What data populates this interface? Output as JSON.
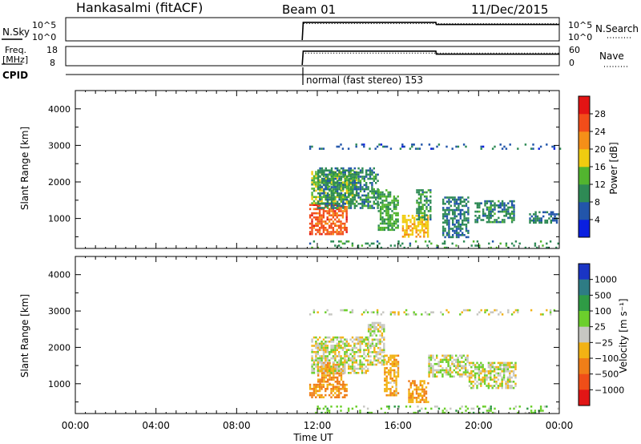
{
  "header": {
    "station": "Hankasalmi (fitACF)",
    "beam": "Beam 01",
    "date": "11/Dec/2015"
  },
  "mini_panels": {
    "nsky": {
      "left_label": "N.Sky",
      "right_label": "N.Search",
      "left_ticks": [
        "10^5",
        "10^0"
      ],
      "right_ticks": [
        "10^5",
        "10^0"
      ]
    },
    "freq": {
      "left_label_1": "Freq.",
      "left_label_2": "[MHz]",
      "right_label": "Nave",
      "left_ticks": [
        "18",
        "8"
      ],
      "right_ticks": [
        "60",
        "0"
      ]
    },
    "cpid": {
      "label": "CPID",
      "text": "normal (fast stereo) 153"
    }
  },
  "axes": {
    "xlabel": "Time UT",
    "xticks": [
      "00:00",
      "04:00",
      "08:00",
      "12:00",
      "16:00",
      "20:00",
      "00:00"
    ],
    "ylabel": "Slant Range [km]",
    "yticks": [
      "1000",
      "2000",
      "3000",
      "4000"
    ]
  },
  "power_colorbar": {
    "label": "Power [dB]",
    "ticks": [
      "28",
      "24",
      "20",
      "16",
      "12",
      "8",
      "4"
    ]
  },
  "velocity_colorbar": {
    "label": "Velocity [m s⁻¹]",
    "ticks": [
      "1000",
      "500",
      "100",
      "25",
      "−25",
      "−100",
      "−500",
      "−1000"
    ]
  },
  "colors": {
    "power": [
      "#0a1fe0",
      "#2255aa",
      "#2e8a55",
      "#52b52f",
      "#f0cc10",
      "#f58f18",
      "#f24d1a",
      "#e31414"
    ],
    "velocity": [
      "#1a35c4",
      "#2e7c84",
      "#2f9b45",
      "#6ccf2c",
      "#c7c7c2",
      "#f2b214",
      "#f07e18",
      "#ef4e18",
      "#e11616"
    ]
  },
  "chart_data": [
    {
      "type": "line",
      "title": "N.Sky / N.Search",
      "x": [
        0,
        11.5,
        11.55,
        18.0,
        18.02,
        24.0
      ],
      "series": [
        {
          "name": "N.Sky",
          "values": [
            null,
            0,
            4.1,
            4.1,
            3.6,
            3.6
          ]
        },
        {
          "name": "N.Search",
          "values": [
            null,
            0,
            3.8,
            3.8,
            3.8,
            3.8
          ]
        }
      ]
    },
    {
      "type": "line",
      "title": "Freq / Nave",
      "x": [
        0,
        11.5,
        11.55,
        18.0,
        18.02,
        24.0
      ],
      "series": [
        {
          "name": "Freq",
          "values": [
            null,
            8,
            15.8,
            15.8,
            14.1,
            14.1
          ]
        },
        {
          "name": "Nave",
          "values": [
            null,
            0,
            40,
            40,
            40,
            40
          ]
        }
      ]
    },
    {
      "type": "heatmap",
      "title": "Power",
      "xlabel": "Time UT",
      "ylabel": "Slant Range [km]",
      "xlim": [
        0,
        24
      ],
      "ylim": [
        180,
        4500
      ],
      "clim": [
        0,
        30
      ],
      "units": "dB",
      "regions": [
        {
          "t": [
            11.6,
            13.5
          ],
          "r": [
            600,
            1400
          ],
          "value": 24
        },
        {
          "t": [
            11.7,
            13.9
          ],
          "r": [
            1400,
            2300
          ],
          "value": 14
        },
        {
          "t": [
            12.0,
            15.0
          ],
          "r": [
            1300,
            2400
          ],
          "value": 9
        },
        {
          "t": [
            15.0,
            16.0
          ],
          "r": [
            700,
            1800
          ],
          "value": 12
        },
        {
          "t": [
            16.2,
            17.5
          ],
          "r": [
            500,
            1100
          ],
          "value": 18
        },
        {
          "t": [
            16.9,
            17.6
          ],
          "r": [
            1000,
            1800
          ],
          "value": 10
        },
        {
          "t": [
            18.2,
            19.5
          ],
          "r": [
            500,
            1600
          ],
          "value": 8
        },
        {
          "t": [
            19.8,
            21.8
          ],
          "r": [
            900,
            1500
          ],
          "value": 9
        },
        {
          "t": [
            22.5,
            24.0
          ],
          "r": [
            900,
            1200
          ],
          "value": 8
        },
        {
          "t": [
            11.6,
            24.0
          ],
          "r": [
            180,
            400
          ],
          "value": 10
        },
        {
          "t": [
            11.6,
            24.0
          ],
          "r": [
            2900,
            3050
          ],
          "value": 6
        }
      ]
    },
    {
      "type": "heatmap",
      "title": "Velocity",
      "xlabel": "Time UT",
      "ylabel": "Slant Range [km]",
      "xlim": [
        0,
        24
      ],
      "ylim": [
        180,
        4500
      ],
      "clim": [
        -1000,
        1000
      ],
      "units": "m s-1",
      "regions": [
        {
          "t": [
            11.6,
            13.5
          ],
          "r": [
            600,
            1000
          ],
          "value": -120
        },
        {
          "t": [
            12.0,
            13.3
          ],
          "r": [
            1000,
            1600
          ],
          "value": -130
        },
        {
          "t": [
            11.7,
            14.5
          ],
          "r": [
            1300,
            2300
          ],
          "value": 0
        },
        {
          "t": [
            14.5,
            15.3
          ],
          "r": [
            1500,
            2700
          ],
          "value": 0
        },
        {
          "t": [
            15.3,
            16.0
          ],
          "r": [
            700,
            1800
          ],
          "value": -80
        },
        {
          "t": [
            16.5,
            17.5
          ],
          "r": [
            500,
            1100
          ],
          "value": -90
        },
        {
          "t": [
            17.5,
            19.5
          ],
          "r": [
            1200,
            1800
          ],
          "value": 5
        },
        {
          "t": [
            19.5,
            21.8
          ],
          "r": [
            900,
            1600
          ],
          "value": 0
        },
        {
          "t": [
            11.6,
            24.0
          ],
          "r": [
            180,
            400
          ],
          "value": 60
        },
        {
          "t": [
            11.6,
            24.0
          ],
          "r": [
            2900,
            3050
          ],
          "value": 0
        }
      ]
    }
  ]
}
